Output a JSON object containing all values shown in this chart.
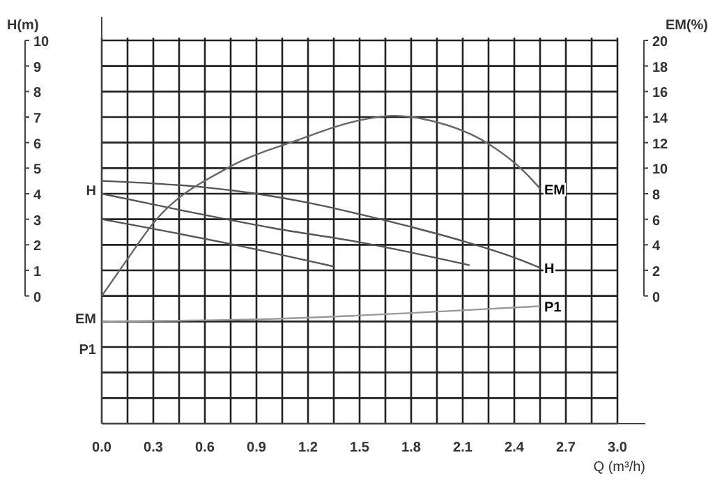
{
  "chart_data": {
    "type": "line",
    "xlabel": "Q (m³/h)",
    "ylabel": "H(m)",
    "y2label": "EM(%)",
    "grid": true,
    "xlim": [
      0,
      3
    ],
    "xticks": [
      {
        "value": 0,
        "label": "0.0"
      },
      {
        "value": 0.15,
        "label": null
      },
      {
        "value": 0.3,
        "label": "0.3"
      },
      {
        "value": 0.45,
        "label": null
      },
      {
        "value": 0.6,
        "label": "0.6"
      },
      {
        "value": 0.75,
        "label": null
      },
      {
        "value": 0.9,
        "label": "0.9"
      },
      {
        "value": 1.05,
        "label": null
      },
      {
        "value": 1.2,
        "label": "1.2"
      },
      {
        "value": 1.35,
        "label": null
      },
      {
        "value": 1.5,
        "label": "1.5"
      },
      {
        "value": 1.65,
        "label": null
      },
      {
        "value": 1.8,
        "label": "1.8"
      },
      {
        "value": 1.95,
        "label": null
      },
      {
        "value": 2.1,
        "label": "2.1"
      },
      {
        "value": 2.25,
        "label": null
      },
      {
        "value": 2.4,
        "label": "2.4"
      },
      {
        "value": 2.55,
        "label": null
      },
      {
        "value": 2.7,
        "label": "2.7"
      },
      {
        "value": 2.85,
        "label": null
      },
      {
        "value": 3,
        "label": "3.0"
      }
    ],
    "ylim": [
      -5,
      10
    ],
    "yticks": [
      {
        "value": -5,
        "label": null
      },
      {
        "value": -4,
        "label": null
      },
      {
        "value": -3,
        "label": null
      },
      {
        "value": -2,
        "label": null
      },
      {
        "value": -1,
        "label": null
      },
      0,
      1,
      2,
      3,
      4,
      5,
      6,
      7,
      8,
      9,
      10
    ],
    "y2lim": [
      -10,
      20
    ],
    "y2ticks": [
      0,
      2,
      4,
      6,
      8,
      10,
      12,
      14,
      16,
      18,
      20
    ],
    "series": [
      {
        "name": "H",
        "color": "#555555",
        "x": [
          0,
          0.3,
          0.6,
          0.9,
          1.2,
          1.5,
          1.8,
          2.1,
          2.4,
          2.55
        ],
        "values": [
          4.5,
          4.4,
          4.25,
          4.0,
          3.65,
          3.2,
          2.7,
          2.15,
          1.5,
          1.1
        ]
      },
      {
        "color": "#555555",
        "x": [
          0,
          0.5,
          1.0,
          1.5,
          2.14
        ],
        "values": [
          4.0,
          3.3,
          2.65,
          2.1,
          1.2
        ]
      },
      {
        "color": "#555555",
        "x": [
          0,
          0.7,
          1.35
        ],
        "values": [
          3.0,
          2.1,
          1.15
        ]
      },
      {
        "name": "EM",
        "color": "#666666",
        "axis": "y2",
        "x": [
          0,
          0.14,
          0.3,
          0.73,
          1.14,
          1.52,
          1.7,
          1.92,
          2.25,
          2.46,
          2.55
        ],
        "values": [
          0,
          2.7,
          5.7,
          10,
          12.2,
          13.8,
          14.1,
          13.7,
          11.9,
          9.7,
          8.4
        ]
      },
      {
        "name": "P1",
        "color": "#999999",
        "x": [
          0,
          1.0,
          2.0,
          2.55
        ],
        "values": [
          -1.0,
          -0.9,
          -0.6,
          -0.4
        ]
      }
    ],
    "annotations": [
      "H",
      "EM",
      "P1"
    ]
  }
}
